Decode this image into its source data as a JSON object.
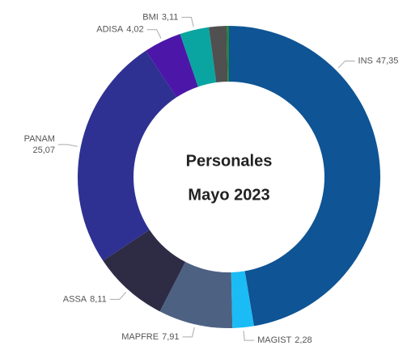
{
  "chart_data": {
    "type": "donut",
    "title": "Personales",
    "subtitle": "Mayo 2023",
    "categories": [
      "INS",
      "MAGIST",
      "MAPFRE",
      "ASSA",
      "PANAM",
      "ADISA",
      "BMI",
      null,
      null
    ],
    "values": [
      47.35,
      2.28,
      7.91,
      8.11,
      25.07,
      4.02,
      3.11,
      1.9,
      0.23
    ],
    "value_labels": [
      "47,35",
      "2,28",
      "7,91",
      "8,11",
      "25,07",
      "4,02",
      "3,11",
      null,
      null
    ],
    "colors": [
      "#0f5494",
      "#1bbcf5",
      "#4d6283",
      "#2e2c45",
      "#2e3192",
      "#4c17a8",
      "#0aa5a0",
      "#505050",
      "#1a8a3a"
    ]
  }
}
